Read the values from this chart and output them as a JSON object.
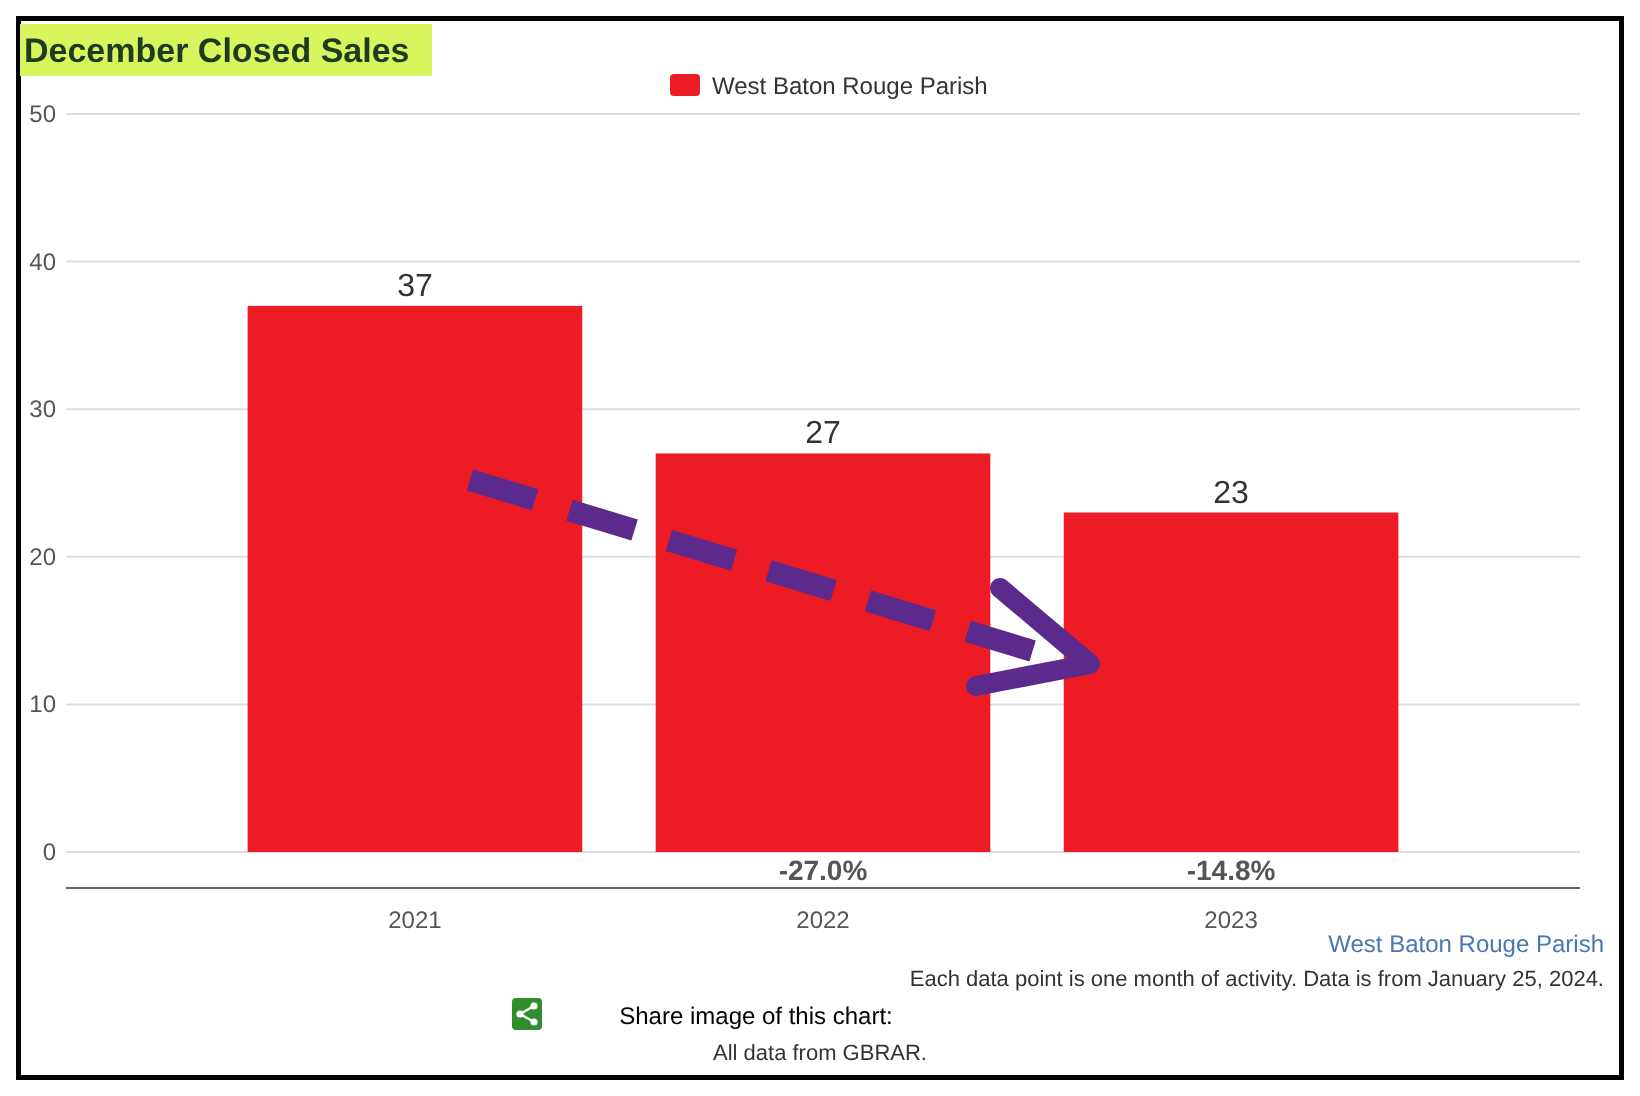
{
  "chart_data": {
    "type": "bar",
    "title": "December Closed Sales",
    "categories": [
      "2021",
      "2022",
      "2023"
    ],
    "series": [
      {
        "name": "West Baton Rouge Parish",
        "color": "#ed1c24",
        "values": [
          37,
          27,
          23
        ]
      }
    ],
    "ylim": [
      0,
      50
    ],
    "yticks": [
      0,
      10,
      20,
      30,
      40,
      50
    ],
    "grid": "y",
    "legend": "top",
    "data_labels": true,
    "annotations": [
      "-27.0%",
      "-14.8%",
      "West Baton Rouge Parish",
      "Each data point is one month of activity. Data is from January 25, 2024.",
      "Share image of this chart:",
      "All data from GBRAR."
    ]
  }
}
